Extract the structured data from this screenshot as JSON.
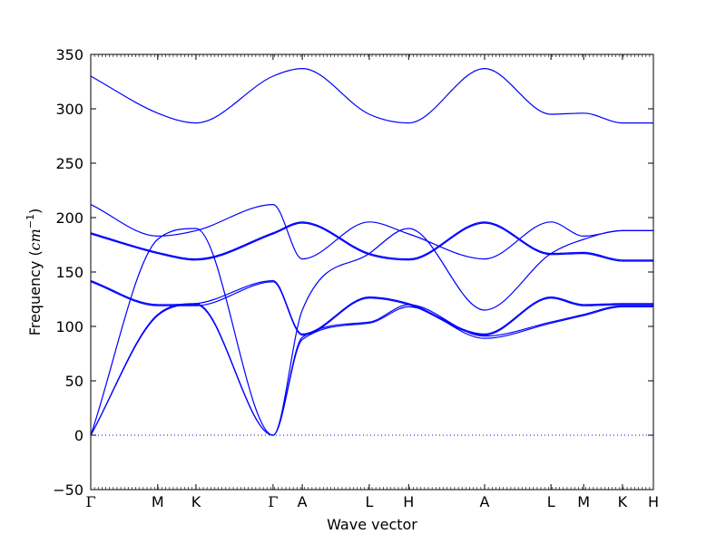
{
  "chart_data": {
    "type": "line",
    "title": "",
    "xlabel": "Wave vector",
    "ylabel": "Frequency (cm⁻¹)",
    "ylabel_parts": [
      "Frequency (",
      "cm",
      "−1",
      ")"
    ],
    "ylim": [
      -50,
      350
    ],
    "yticks": [
      -50,
      0,
      50,
      100,
      150,
      200,
      250,
      300,
      350
    ],
    "xlim": [
      0,
      1
    ],
    "high_symmetry_points": [
      {
        "label": "Γ",
        "x": 0.0
      },
      {
        "label": "M",
        "x": 0.119
      },
      {
        "label": "K",
        "x": 0.187
      },
      {
        "label": "Γ",
        "x": 0.324
      },
      {
        "label": "A",
        "x": 0.376
      },
      {
        "label": "L",
        "x": 0.495
      },
      {
        "label": "H",
        "x": 0.565
      },
      {
        "label": "A",
        "x": 0.7
      },
      {
        "label": "L",
        "x": 0.818
      },
      {
        "label": "M",
        "x": 0.876
      },
      {
        "label": "K",
        "x": 0.945
      },
      {
        "label": "H",
        "x": 1.0
      }
    ],
    "zero_line": {
      "y": 0,
      "style": "dotted",
      "color": "#0000ff"
    },
    "line_color": "#0000ff",
    "grid": false,
    "legend": "none",
    "series": [
      {
        "x": [
          0,
          0.119,
          0.187,
          0.324,
          0.376,
          0.495,
          0.565,
          0.7,
          0.818,
          0.876,
          0.945,
          1.0
        ],
        "values": [
          0,
          110,
          120,
          0,
          88,
          103,
          118,
          89,
          103,
          110,
          118,
          118
        ]
      },
      {
        "x": [
          0,
          0.119,
          0.187,
          0.324,
          0.376,
          0.495,
          0.565,
          0.7,
          0.818,
          0.876,
          0.945,
          1.0
        ],
        "values": [
          0,
          111,
          121,
          0,
          90,
          104,
          120,
          91,
          104,
          111,
          119,
          119
        ]
      },
      {
        "x": [
          0,
          0.119,
          0.187,
          0.324,
          0.376,
          0.495,
          0.565,
          0.7,
          0.818,
          0.876,
          0.945,
          1.0
        ],
        "values": [
          0,
          180,
          190,
          0,
          115,
          167,
          190,
          115,
          167,
          180,
          188,
          188
        ]
      },
      {
        "x": [
          0,
          0.119,
          0.187,
          0.324,
          0.376,
          0.495,
          0.565,
          0.7,
          0.818,
          0.876,
          0.945,
          1.0
        ],
        "values": [
          141,
          119,
          119,
          141,
          92,
          126,
          120,
          92,
          126,
          119,
          120,
          120
        ]
      },
      {
        "x": [
          0,
          0.119,
          0.187,
          0.324,
          0.376,
          0.495,
          0.565,
          0.7,
          0.818,
          0.876,
          0.945,
          1.0
        ],
        "values": [
          142,
          120,
          121,
          142,
          93,
          127,
          121,
          93,
          127,
          120,
          121,
          121
        ]
      },
      {
        "x": [
          0,
          0.119,
          0.187,
          0.324,
          0.376,
          0.495,
          0.565,
          0.7,
          0.818,
          0.876,
          0.945,
          1.0
        ],
        "values": [
          185,
          167,
          161,
          185,
          195,
          166,
          161,
          195,
          166,
          167,
          160,
          160
        ]
      },
      {
        "x": [
          0,
          0.119,
          0.187,
          0.324,
          0.376,
          0.495,
          0.565,
          0.7,
          0.818,
          0.876,
          0.945,
          1.0
        ],
        "values": [
          186,
          168,
          162,
          186,
          196,
          167,
          162,
          196,
          167,
          168,
          161,
          161
        ]
      },
      {
        "x": [
          0,
          0.119,
          0.187,
          0.324,
          0.376,
          0.495,
          0.565,
          0.7,
          0.818,
          0.876,
          0.945,
          1.0
        ],
        "values": [
          212,
          183,
          188,
          212,
          162,
          196,
          185,
          162,
          196,
          183,
          188,
          188
        ]
      },
      {
        "x": [
          0,
          0.119,
          0.187,
          0.324,
          0.376,
          0.495,
          0.565,
          0.7,
          0.818,
          0.876,
          0.945,
          1.0
        ],
        "values": [
          330,
          296,
          287,
          330,
          337,
          295,
          287,
          337,
          295,
          296,
          287,
          287
        ]
      }
    ]
  }
}
